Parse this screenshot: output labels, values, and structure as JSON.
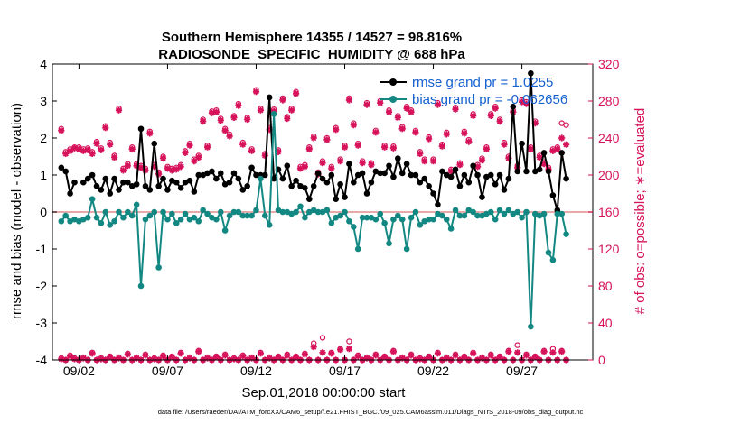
{
  "chart_data": {
    "type": "line",
    "title": "Southern Hemisphere 14355 / 14527 = 98.816%",
    "subtitle": "RADIOSONDE_SPECIFIC_HUMIDITY @ 688 hPa",
    "xlabel": "Sep.01,2018 00:00:00 start",
    "ylabel": "rmse and bias (model - observation)",
    "y2label": "# of obs: o=possible; ∗=evaluated",
    "ylim": [
      -4,
      4
    ],
    "y2lim": [
      0,
      320
    ],
    "xlim": [
      0.5,
      31.0
    ],
    "yticks": [
      -4,
      -3,
      -2,
      -1,
      0,
      1,
      2,
      3,
      4
    ],
    "y2ticks": [
      0,
      40,
      80,
      120,
      160,
      200,
      240,
      280,
      320
    ],
    "xticks": [
      {
        "pos": 2,
        "label": "09/02"
      },
      {
        "pos": 7,
        "label": "09/07"
      },
      {
        "pos": 12,
        "label": "09/12"
      },
      {
        "pos": 17,
        "label": "09/17"
      },
      {
        "pos": 22,
        "label": "09/22"
      },
      {
        "pos": 27,
        "label": "09/27"
      }
    ],
    "x_step": 0.25,
    "zero_line": 0,
    "series": [
      {
        "name": "rmse grand pr = 1.0255",
        "color": "#000000",
        "values": [
          1.2,
          1.1,
          0.5,
          0.8,
          null,
          0.8,
          0.9,
          1.0,
          0.7,
          0.6,
          0.9,
          0.5,
          0.9,
          0.6,
          0.8,
          0.8,
          0.7,
          0.75,
          2.25,
          0.7,
          0.6,
          1.85,
          0.7,
          0.9,
          0.6,
          0.85,
          0.8,
          0.65,
          0.8,
          0.85,
          0.55,
          1.0,
          1.0,
          1.05,
          1.1,
          0.9,
          1.05,
          0.75,
          0.8,
          1.05,
          0.9,
          0.6,
          0.7,
          1.2,
          1.0,
          1.0,
          1.0,
          3.1,
          0.9,
          1.15,
          0.9,
          1.25,
          0.7,
          0.85,
          0.7,
          0.65,
          0.35,
          0.7,
          1.05,
          0.9,
          0.8,
          1.0,
          0.35,
          0.75,
          0.4,
          1.3,
          0.8,
          1.0,
          1.05,
          0.5,
          0.8,
          1.1,
          1.05,
          1.05,
          1.25,
          0.95,
          1.45,
          1.05,
          1.3,
          1.0,
          1.0,
          0.8,
          0.9,
          0.7,
          0.5,
          0.2,
          1.1,
          1.0,
          0.95,
          1.15,
          0.7,
          1.0,
          0.8,
          1.25,
          1.0,
          0.4,
          0.95,
          1.0,
          0.75,
          1.0,
          0.6,
          0.9,
          2.85,
          1.1,
          1.85,
          1.1,
          3.75,
          1.1,
          1.15,
          1.6,
          1.1,
          0.45,
          0.05,
          1.6,
          0.9
        ]
      },
      {
        "name": "bias grand pr = -0.062656",
        "color": "#138883",
        "values": [
          -0.25,
          -0.1,
          -0.25,
          -0.2,
          -0.25,
          -0.2,
          -0.15,
          0.35,
          -0.15,
          -0.3,
          0.0,
          -0.35,
          -0.25,
          0.0,
          -0.15,
          0.0,
          -0.1,
          0.2,
          -2.0,
          -0.2,
          -0.1,
          0.0,
          -1.5,
          0.0,
          -0.2,
          -0.05,
          -0.3,
          -0.2,
          -0.05,
          -0.2,
          -0.15,
          -0.25,
          0.05,
          -0.05,
          -0.15,
          -0.2,
          0.0,
          -0.5,
          -0.1,
          0.0,
          0.0,
          -0.1,
          -0.1,
          -0.1,
          0.05,
          0.9,
          -0.1,
          -0.35,
          2.65,
          0.05,
          0.0,
          0.0,
          -0.05,
          0.0,
          0.15,
          -0.15,
          0.0,
          0.05,
          0.0,
          0.0,
          0.05,
          -0.3,
          -0.15,
          -0.1,
          0.0,
          -0.25,
          -0.4,
          -1.0,
          -0.15,
          -0.15,
          -0.15,
          -0.2,
          -0.05,
          -0.3,
          -0.85,
          -0.2,
          -0.1,
          -0.2,
          -1.0,
          -0.15,
          0.0,
          -0.35,
          -0.25,
          -0.2,
          -0.2,
          -0.05,
          -0.1,
          -0.2,
          -0.45,
          0.05,
          -0.1,
          -0.1,
          0.05,
          0.0,
          -0.1,
          -0.1,
          -0.05,
          0.0,
          -0.2,
          0.05,
          -0.05,
          0.05,
          -0.05,
          0.0,
          -0.15,
          0.0,
          -3.1,
          -0.05,
          -0.1,
          -0.05,
          -1.1,
          -1.3,
          -0.05,
          -0.05,
          -0.6
        ]
      }
    ],
    "obs_counts": {
      "possible_high": [
        250,
        225,
        228,
        230,
        230,
        228,
        229,
        225,
        236,
        229,
        253,
        235,
        221,
        272,
        207,
        212,
        230,
        212,
        210,
        207,
        247,
        211,
        203,
        220,
        209,
        207,
        208,
        211,
        226,
        234,
        217,
        221,
        260,
        232,
        269,
        270,
        261,
        250,
        244,
        264,
        277,
        235,
        262,
        228,
        292,
        272,
        223,
        251,
        271,
        227,
        283,
        263,
        272,
        290,
        209,
        211,
        230,
        242,
        203,
        215,
        240,
        209,
        251,
        217,
        232,
        283,
        256,
        234,
        215,
        278,
        213,
        248,
        280,
        232,
        270,
        231,
        264,
        252,
        274,
        270,
        248,
        225,
        217,
        241,
        217,
        278,
        233,
        246,
        206,
        273,
        213,
        247,
        238,
        266,
        211,
        218,
        230,
        266,
        274,
        260,
        235,
        220,
        270,
        210,
        281,
        279,
        230,
        258,
        221,
        214,
        208,
        228,
        230,
        256,
        254
      ],
      "evaluated_high": [
        248,
        223,
        226,
        229,
        228,
        226,
        227,
        223,
        234,
        227,
        251,
        233,
        219,
        270,
        205,
        210,
        228,
        210,
        208,
        205,
        245,
        209,
        201,
        218,
        207,
        205,
        206,
        209,
        224,
        232,
        215,
        219,
        258,
        230,
        267,
        268,
        259,
        248,
        242,
        262,
        275,
        233,
        260,
        226,
        290,
        270,
        221,
        249,
        269,
        225,
        281,
        261,
        270,
        288,
        207,
        209,
        228,
        240,
        201,
        213,
        238,
        207,
        249,
        215,
        230,
        281,
        254,
        232,
        213,
        276,
        211,
        246,
        278,
        230,
        268,
        229,
        262,
        250,
        272,
        268,
        246,
        223,
        215,
        239,
        215,
        276,
        231,
        244,
        204,
        271,
        211,
        245,
        236,
        264,
        209,
        216,
        228,
        264,
        272,
        258,
        233,
        218,
        268,
        208,
        279,
        277,
        228,
        256,
        219,
        212,
        206,
        226,
        228,
        240,
        233
      ],
      "possible_low": [
        2,
        0,
        5,
        2,
        0,
        3,
        0,
        8,
        0,
        2,
        0,
        4,
        0,
        3,
        0,
        7,
        0,
        3,
        0,
        6,
        0,
        2,
        0,
        5,
        0,
        4,
        0,
        8,
        0,
        3,
        0,
        10,
        0,
        3,
        0,
        4,
        0,
        6,
        0,
        2,
        0,
        5,
        0,
        3,
        0,
        8,
        0,
        3,
        0,
        4,
        0,
        6,
        0,
        4,
        0,
        7,
        0,
        18,
        0,
        24,
        0,
        8,
        0,
        12,
        0,
        20,
        0,
        5,
        0,
        3,
        0,
        6,
        0,
        4,
        0,
        10,
        0,
        3,
        0,
        6,
        0,
        2,
        0,
        4,
        0,
        8,
        0,
        3,
        0,
        6,
        0,
        4,
        0,
        8,
        0,
        3,
        0,
        6,
        0,
        4,
        0,
        10,
        0,
        16,
        0,
        6,
        0,
        4,
        0,
        10,
        0,
        12,
        0,
        10,
        0
      ],
      "evaluated_low": [
        1,
        0,
        4,
        1,
        0,
        2,
        0,
        7,
        0,
        1,
        0,
        3,
        0,
        2,
        0,
        6,
        0,
        2,
        0,
        5,
        0,
        1,
        0,
        4,
        0,
        3,
        0,
        7,
        0,
        2,
        0,
        9,
        0,
        2,
        0,
        3,
        0,
        5,
        0,
        1,
        0,
        4,
        0,
        2,
        0,
        7,
        0,
        2,
        0,
        3,
        0,
        5,
        0,
        3,
        0,
        6,
        0,
        14,
        0,
        8,
        0,
        7,
        0,
        11,
        0,
        12,
        0,
        4,
        0,
        2,
        0,
        5,
        0,
        3,
        0,
        9,
        0,
        2,
        0,
        5,
        0,
        1,
        0,
        3,
        0,
        7,
        0,
        2,
        0,
        5,
        0,
        3,
        0,
        7,
        0,
        2,
        0,
        5,
        0,
        3,
        0,
        9,
        0,
        8,
        0,
        5,
        0,
        3,
        0,
        9,
        0,
        8,
        0,
        9,
        0
      ]
    },
    "colors": {
      "rmse": "#000000",
      "bias": "#138883",
      "obs": "#d6125a",
      "zero": "#e8a9a9"
    },
    "legend": {
      "position": "top-right"
    }
  },
  "footnote": "data file: /Users/raeder/DAI/ATM_forcXX/CAM6_setup/f.e21.FHIST_BGC.f09_025.CAM6assim.011/Diags_NTrS_2018-09/obs_diag_output.nc"
}
